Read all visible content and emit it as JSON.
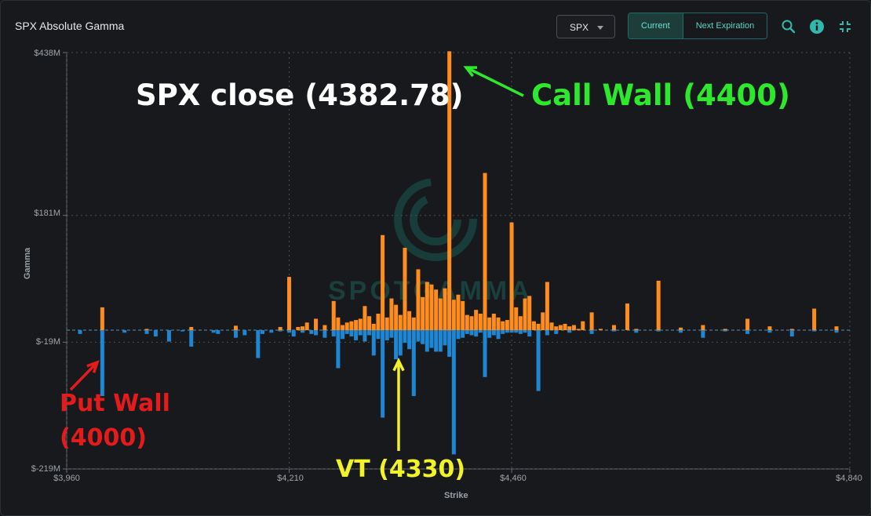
{
  "header": {
    "title": "SPX Absolute Gamma",
    "symbol_select": "SPX",
    "tabs": [
      "Current",
      "Next Expiration"
    ],
    "active_tab": "Current",
    "icons": [
      "search-icon",
      "info-icon",
      "collapse-icon"
    ]
  },
  "colors": {
    "positive": "#ff8d1e",
    "negative": "#1f86d4",
    "accent": "#1f6b66"
  },
  "watermark": "SPOTGAMMA",
  "annotations": {
    "close": "SPX close (4382.78)",
    "call_wall": "Call Wall (4400)",
    "put_wall_line1": "Put Wall",
    "put_wall_line2": "(4000)",
    "vt": "VT (4330)"
  },
  "chart_data": {
    "type": "bar",
    "xlabel": "Strike",
    "ylabel": "Gamma",
    "xlim": [
      3960,
      4840
    ],
    "ylim": [
      -219,
      438
    ],
    "y_unit": "$M",
    "xticks": [
      "$3,960",
      "$4,210",
      "$4,460",
      "$4,840"
    ],
    "xtick_values": [
      3960,
      4210,
      4460,
      4840
    ],
    "yticks": [
      "$438M",
      "$181M",
      "$-19M",
      "$-219M"
    ],
    "ytick_values": [
      438,
      181,
      -19,
      -219
    ],
    "grid": true,
    "series": [
      {
        "name": "positive",
        "x": [
          4000,
          4050,
          4100,
          4150,
          4200,
          4210,
          4220,
          4225,
          4230,
          4240,
          4250,
          4260,
          4265,
          4270,
          4275,
          4280,
          4285,
          4290,
          4295,
          4300,
          4305,
          4310,
          4315,
          4320,
          4325,
          4330,
          4335,
          4340,
          4345,
          4350,
          4355,
          4360,
          4365,
          4370,
          4375,
          4380,
          4385,
          4390,
          4395,
          4400,
          4405,
          4410,
          4415,
          4420,
          4425,
          4430,
          4435,
          4440,
          4445,
          4450,
          4455,
          4460,
          4465,
          4470,
          4475,
          4480,
          4485,
          4490,
          4495,
          4500,
          4505,
          4510,
          4515,
          4520,
          4525,
          4530,
          4535,
          4540,
          4550,
          4560,
          4575,
          4590,
          4600,
          4625,
          4650,
          4675,
          4700,
          4725,
          4750,
          4775,
          4800,
          4825
        ],
        "values": [
          36,
          2,
          5,
          7,
          5,
          84,
          5,
          6,
          12,
          18,
          8,
          46,
          20,
          8,
          12,
          14,
          16,
          18,
          38,
          22,
          10,
          26,
          150,
          20,
          50,
          40,
          24,
          130,
          30,
          20,
          96,
          52,
          76,
          72,
          64,
          50,
          66,
          440,
          48,
          56,
          46,
          24,
          22,
          32,
          26,
          248,
          20,
          26,
          20,
          14,
          16,
          170,
          36,
          22,
          50,
          54,
          14,
          10,
          28,
          76,
          12,
          6,
          8,
          10,
          6,
          8,
          2,
          14,
          28,
          2,
          8,
          42,
          2,
          78,
          4,
          8,
          2,
          18,
          6,
          2,
          34,
          6
        ]
      },
      {
        "name": "negative",
        "x": [
          3975,
          4000,
          4025,
          4050,
          4060,
          4075,
          4090,
          4100,
          4125,
          4130,
          4150,
          4160,
          4175,
          4180,
          4190,
          4200,
          4210,
          4215,
          4225,
          4235,
          4240,
          4250,
          4260,
          4265,
          4270,
          4275,
          4280,
          4285,
          4290,
          4295,
          4300,
          4305,
          4310,
          4315,
          4320,
          4325,
          4330,
          4335,
          4340,
          4345,
          4350,
          4355,
          4360,
          4365,
          4370,
          4375,
          4380,
          4385,
          4390,
          4395,
          4400,
          4405,
          4410,
          4415,
          4420,
          4425,
          4430,
          4435,
          4440,
          4445,
          4450,
          4455,
          4460,
          4465,
          4470,
          4475,
          4480,
          4490,
          4500,
          4510,
          4525,
          4550,
          4575,
          4600,
          4625,
          4650,
          4675,
          4700,
          4725,
          4750,
          4775,
          4800,
          4825
        ],
        "values": [
          -6,
          -104,
          -4,
          -6,
          -10,
          -18,
          -2,
          -26,
          -4,
          -6,
          -12,
          -8,
          -44,
          -6,
          -4,
          -2,
          -4,
          -10,
          -4,
          -6,
          -8,
          -12,
          -10,
          -60,
          -14,
          -6,
          -10,
          -16,
          -8,
          -18,
          -8,
          -40,
          -14,
          -138,
          -16,
          -12,
          -46,
          -40,
          -20,
          -30,
          -104,
          -18,
          -22,
          -34,
          -28,
          -34,
          -34,
          -24,
          -42,
          -196,
          -14,
          -12,
          -6,
          -8,
          -10,
          -4,
          -74,
          -12,
          -8,
          -14,
          -6,
          -4,
          -4,
          -4,
          -6,
          -4,
          -10,
          -96,
          -8,
          -6,
          -4,
          -6,
          -2,
          -4,
          -2,
          -4,
          -12,
          -2,
          -6,
          -4,
          -10,
          -2,
          -4
        ]
      }
    ]
  }
}
